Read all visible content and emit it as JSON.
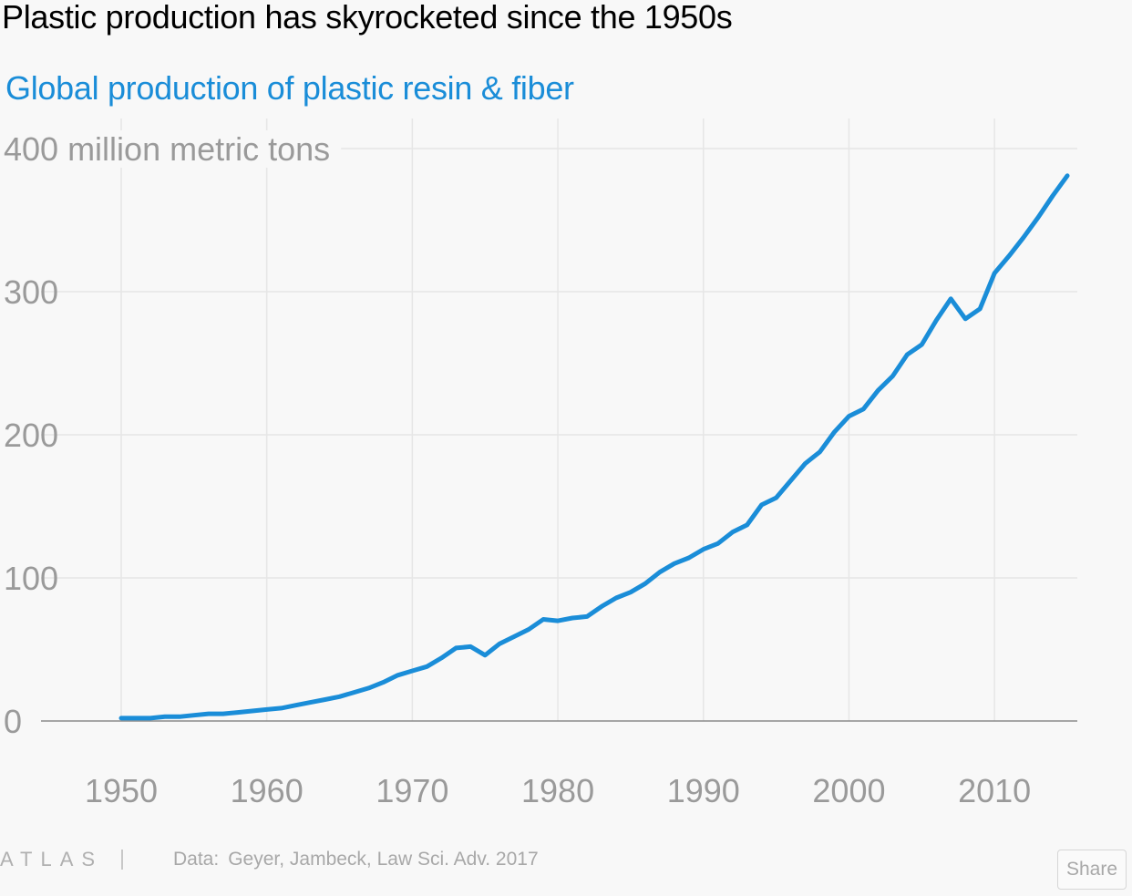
{
  "chart_data": {
    "type": "line",
    "title": "Plastic production has skyrocketed since the 1950s",
    "subtitle": "Global production of plastic resin & fiber",
    "ylabel": "",
    "xlabel": "",
    "ylim": [
      0,
      400
    ],
    "xlim": [
      1950,
      2015
    ],
    "y_ticks": [
      {
        "value": 400,
        "label": "400 million metric tons"
      },
      {
        "value": 300,
        "label": "300"
      },
      {
        "value": 200,
        "label": "200"
      },
      {
        "value": 100,
        "label": "100"
      },
      {
        "value": 0,
        "label": "0"
      }
    ],
    "x_ticks": [
      {
        "value": 1950,
        "label": "1950"
      },
      {
        "value": 1960,
        "label": "1960"
      },
      {
        "value": 1970,
        "label": "1970"
      },
      {
        "value": 1980,
        "label": "1980"
      },
      {
        "value": 1990,
        "label": "1990"
      },
      {
        "value": 2000,
        "label": "2000"
      },
      {
        "value": 2010,
        "label": "2010"
      }
    ],
    "grid": true,
    "legend": "none",
    "series": [
      {
        "color": "#1a8dd8",
        "x": [
          1950,
          1951,
          1952,
          1953,
          1954,
          1955,
          1956,
          1957,
          1958,
          1959,
          1960,
          1961,
          1962,
          1963,
          1964,
          1965,
          1966,
          1967,
          1968,
          1969,
          1970,
          1971,
          1972,
          1973,
          1974,
          1975,
          1976,
          1977,
          1978,
          1979,
          1980,
          1981,
          1982,
          1983,
          1984,
          1985,
          1986,
          1987,
          1988,
          1989,
          1990,
          1991,
          1992,
          1993,
          1994,
          1995,
          1996,
          1997,
          1998,
          1999,
          2000,
          2001,
          2002,
          2003,
          2004,
          2005,
          2006,
          2007,
          2008,
          2009,
          2010,
          2011,
          2012,
          2013,
          2014,
          2015
        ],
        "values": [
          2,
          2,
          2,
          3,
          3,
          4,
          5,
          5,
          6,
          7,
          8,
          9,
          11,
          13,
          15,
          17,
          20,
          23,
          27,
          32,
          35,
          38,
          44,
          51,
          52,
          46,
          54,
          59,
          64,
          71,
          70,
          72,
          73,
          80,
          86,
          90,
          96,
          104,
          110,
          114,
          120,
          124,
          132,
          137,
          151,
          156,
          168,
          180,
          188,
          202,
          213,
          218,
          231,
          241,
          256,
          263,
          280,
          295,
          281,
          288,
          313,
          325,
          338,
          352,
          367,
          381
        ]
      }
    ]
  },
  "footer": {
    "brand": "ATLAS",
    "source_label": "Data:",
    "source_text": "Geyer, Jambeck, Law Sci. Adv. 2017",
    "share_label": "Share"
  },
  "colors": {
    "line": "#1a8dd8",
    "subtitle": "#1a8dd8",
    "grid": "#e6e6e6",
    "axis_text": "#9a9a9a",
    "baseline": "#8a8a8a"
  }
}
